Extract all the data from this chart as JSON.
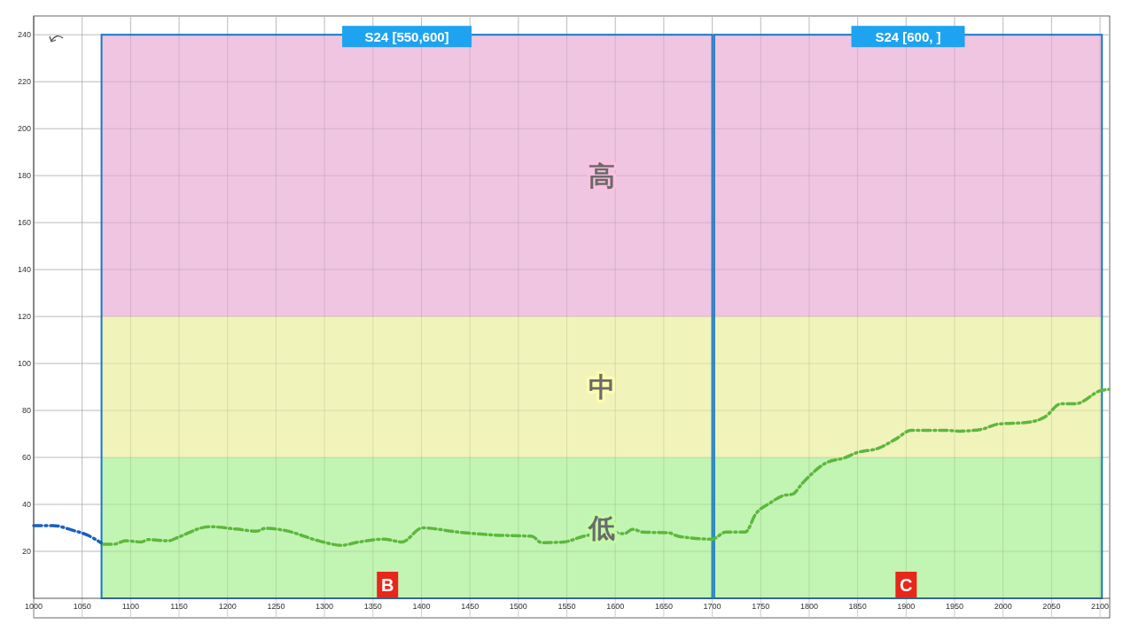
{
  "chart_data": {
    "type": "line",
    "xlim": [
      1000,
      2110
    ],
    "ylim": [
      0,
      248
    ],
    "xticks": [
      1000,
      1050,
      1100,
      1150,
      1200,
      1250,
      1300,
      1350,
      1400,
      1450,
      1500,
      1550,
      1600,
      1650,
      1700,
      1750,
      1800,
      1850,
      1900,
      1950,
      2000,
      2050,
      2100
    ],
    "yticks": [
      20,
      40,
      60,
      80,
      100,
      120,
      140,
      160,
      180,
      200,
      220,
      240
    ],
    "grid": true,
    "line_style": "dashed",
    "series": [
      {
        "color": "#1a5fc0",
        "x": [
          1000,
          1020,
          1040,
          1055,
          1070
        ],
        "values": [
          31,
          31,
          29,
          27,
          23.5
        ]
      },
      {
        "color": "#5cb83c",
        "x": [
          1072,
          1082,
          1095,
          1111,
          1118,
          1139,
          1149,
          1181,
          1209,
          1230,
          1239,
          1258,
          1294,
          1317,
          1336,
          1361,
          1380,
          1401,
          1438,
          1473,
          1514,
          1524,
          1547,
          1567,
          1595,
          1609,
          1618,
          1628,
          1655,
          1665,
          1700,
          1714,
          1734,
          1745,
          1760,
          1773,
          1783,
          1793,
          1817,
          1837,
          1849,
          1872,
          1890,
          1905,
          1943,
          1955,
          1978,
          1995,
          2025,
          2043,
          2060,
          2075,
          2101,
          2109
        ],
        "values": [
          23,
          23,
          24.5,
          24,
          25,
          24.5,
          26,
          30.5,
          29.5,
          28.6,
          29.8,
          29,
          24.5,
          22.6,
          24,
          25.2,
          24,
          30,
          28.2,
          27,
          26.4,
          23.7,
          24,
          26.4,
          28.2,
          27.5,
          29.4,
          28.2,
          27.9,
          26.4,
          25.2,
          28.2,
          28.2,
          36,
          40.7,
          43.7,
          44.4,
          49,
          57.6,
          59.9,
          62,
          64,
          68,
          71.5,
          71.5,
          71.2,
          72,
          74.2,
          74.9,
          77.2,
          82.9,
          82.9,
          88.5,
          89
        ]
      }
    ],
    "bands": [
      {
        "axis": "x",
        "from": 1070,
        "to": 1700,
        "label": "S24  [550,600]",
        "color": "#1a78c2"
      },
      {
        "axis": "x",
        "from": 1702,
        "to": 2102,
        "label": "S24  [600, ]",
        "color": "#1a78c2"
      },
      {
        "axis": "y",
        "from": 120,
        "to": 240,
        "label": "高",
        "color": "#fbc1e0"
      },
      {
        "axis": "y",
        "from": 60,
        "to": 120,
        "label": "中",
        "color": "#fdfcb0"
      },
      {
        "axis": "y",
        "from": 0,
        "to": 60,
        "label": "低",
        "color": "#c4fba6"
      }
    ],
    "annotations": [
      {
        "text": "B",
        "x": 1365,
        "y": 0
      },
      {
        "text": "C",
        "x": 1900,
        "y": 0
      }
    ]
  }
}
